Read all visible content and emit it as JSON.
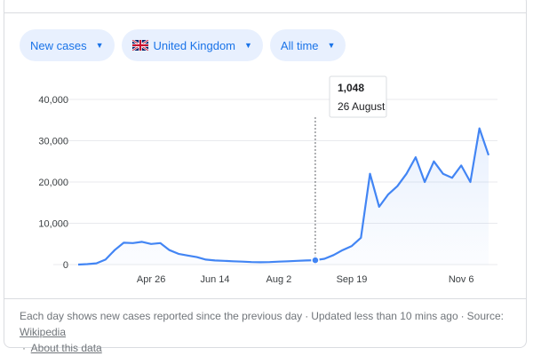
{
  "filters": {
    "metric": "New cases",
    "region": "United Kingdom",
    "period": "All time"
  },
  "tooltip": {
    "value": "1,048",
    "date": "26 August"
  },
  "footer": {
    "note": "Each day shows new cases reported since the previous day",
    "updated": "Updated less than 10 mins ago",
    "source_label": "Source:",
    "source_link": "Wikipedia",
    "about": "About this data"
  },
  "colors": {
    "accent": "#1a73e8",
    "line": "#4285f4",
    "grid": "#e8eaed"
  },
  "chart_data": {
    "type": "line",
    "y_ticks": [
      "40,000",
      "30,000",
      "20,000",
      "10,000",
      "0"
    ],
    "x_ticks": [
      "Apr 26",
      "Jun 14",
      "Aug 2",
      "Sep 19",
      "Nov 6"
    ],
    "ylim": [
      0,
      40000
    ],
    "x": [
      "Mar 1",
      "Mar 8",
      "Mar 15",
      "Mar 22",
      "Mar 29",
      "Apr 5",
      "Apr 12",
      "Apr 19",
      "Apr 26",
      "May 3",
      "May 10",
      "May 17",
      "May 24",
      "May 31",
      "Jun 7",
      "Jun 14",
      "Jun 21",
      "Jun 28",
      "Jul 5",
      "Jul 12",
      "Jul 19",
      "Jul 26",
      "Aug 2",
      "Aug 9",
      "Aug 16",
      "Aug 23",
      "Aug 26",
      "Aug 30",
      "Sep 6",
      "Sep 13",
      "Sep 19",
      "Sep 26",
      "Sep 30",
      "Oct 4",
      "Oct 8",
      "Oct 12",
      "Oct 17",
      "Oct 22",
      "Oct 25",
      "Oct 28",
      "Nov 1",
      "Nov 4",
      "Nov 6",
      "Nov 8",
      "Nov 10",
      "Nov 12"
    ],
    "values": [
      0,
      100,
      300,
      1200,
      3500,
      5300,
      5200,
      5500,
      5000,
      5200,
      3500,
      2600,
      2200,
      1800,
      1200,
      1000,
      900,
      800,
      700,
      600,
      550,
      600,
      700,
      800,
      900,
      1000,
      1048,
      1400,
      2300,
      3500,
      4500,
      6500,
      22000,
      14000,
      17000,
      19000,
      22000,
      26000,
      20000,
      25000,
      22000,
      21000,
      24000,
      20000,
      33000,
      26500
    ],
    "highlight": {
      "date": "26 August",
      "value": 1048
    }
  }
}
